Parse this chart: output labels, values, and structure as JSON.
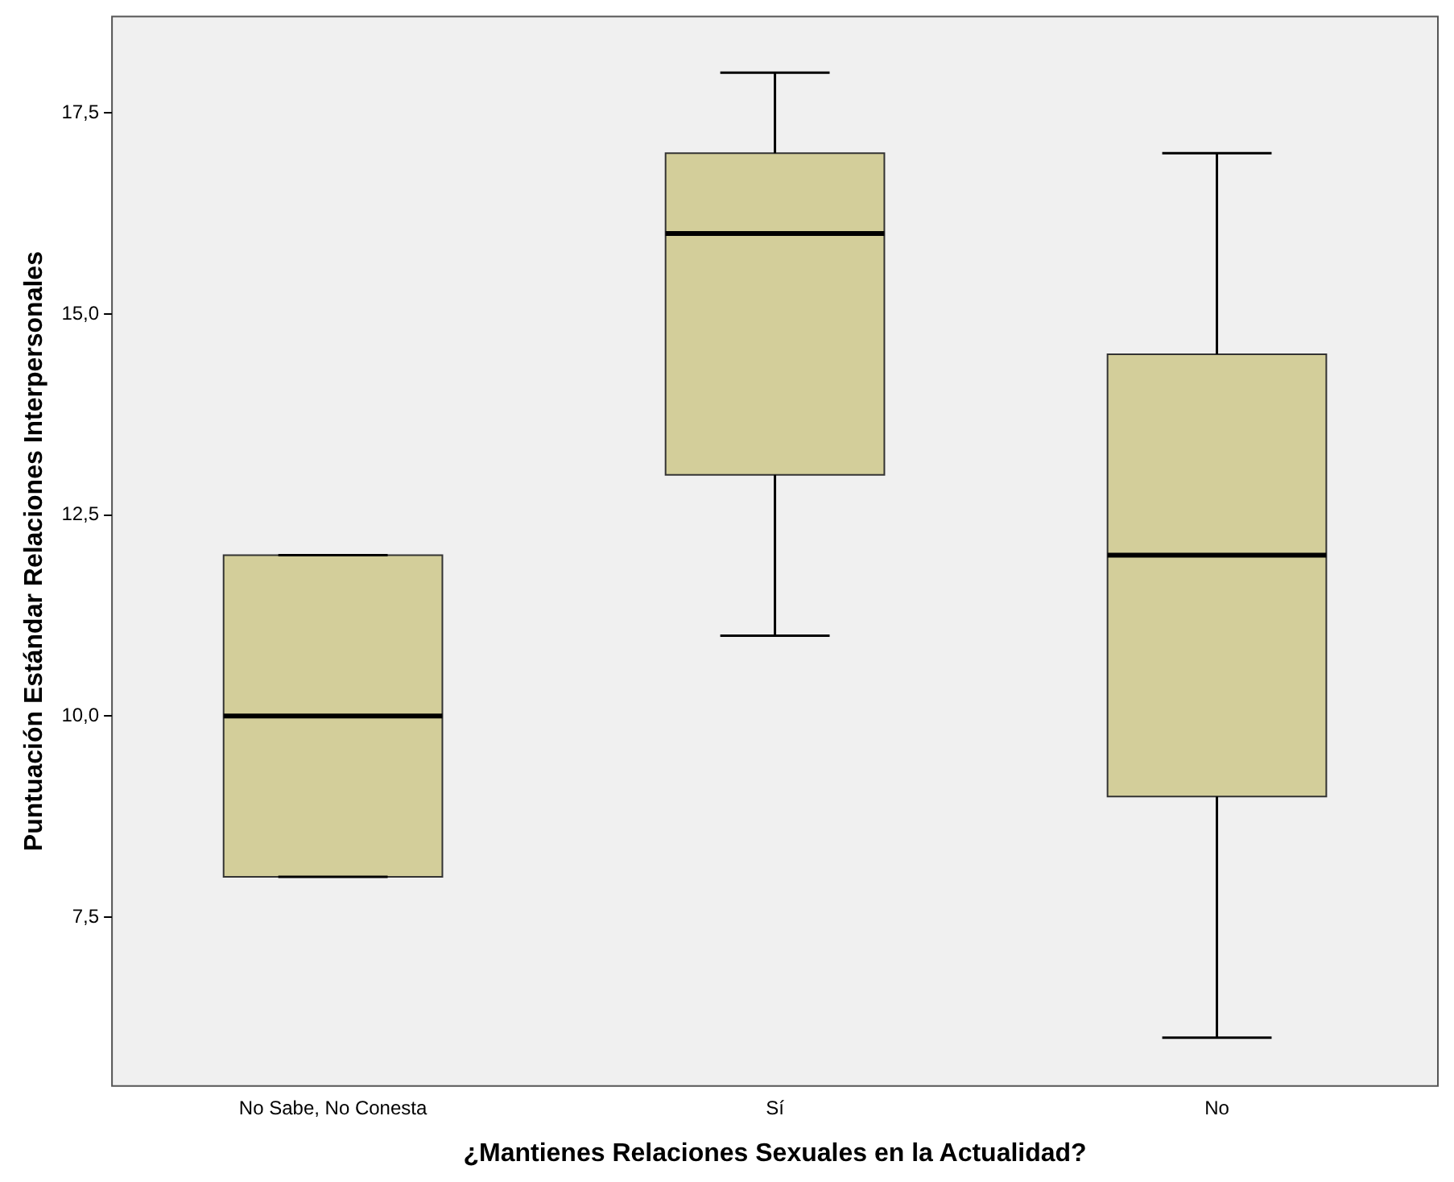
{
  "chart_data": {
    "type": "box",
    "xlabel": "¿Mantienes Relaciones Sexuales en la Actualidad?",
    "ylabel": "Puntuación Estándar Relaciones Interpersonales",
    "categories": [
      "No Sabe, No Conesta",
      "Sí",
      "No"
    ],
    "color": "#d3ce9a",
    "boxes": [
      {
        "low": 8,
        "q1": 8,
        "median": 10,
        "q3": 12,
        "high": 12
      },
      {
        "low": 11,
        "q1": 13,
        "median": 16,
        "q3": 17,
        "high": 18
      },
      {
        "low": 6,
        "q1": 9,
        "median": 12,
        "q3": 14.5,
        "high": 17
      }
    ],
    "ylim": [
      5.4,
      18.7
    ],
    "yticks": [
      {
        "value": 7.5,
        "label": "7,5"
      },
      {
        "value": 10,
        "label": "10,0"
      },
      {
        "value": 12.5,
        "label": "12,5"
      },
      {
        "value": 15,
        "label": "15,0"
      },
      {
        "value": 17.5,
        "label": "17,5"
      }
    ],
    "grid": false,
    "legend": false
  }
}
